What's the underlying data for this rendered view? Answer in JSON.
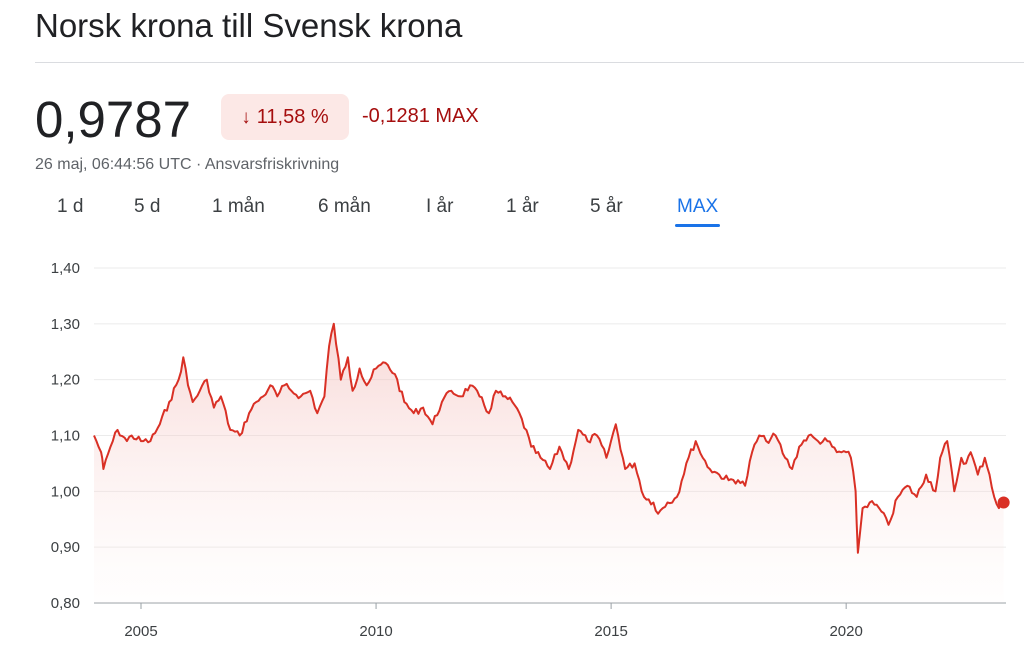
{
  "header": {
    "title": "Norsk krona till Svensk krona"
  },
  "quote": {
    "price": "0,9787",
    "change_percent": "11,58 %",
    "change_arrow": "↓",
    "change_abs": "-0,1281 MAX",
    "timestamp": "26 maj, 06:44:56 UTC",
    "separator": "·",
    "disclaimer": "Ansvarsfriskrivning"
  },
  "tabs": [
    {
      "label": "1 d",
      "active": false
    },
    {
      "label": "5 d",
      "active": false
    },
    {
      "label": "1 mån",
      "active": false
    },
    {
      "label": "6 mån",
      "active": false
    },
    {
      "label": "I år",
      "active": false
    },
    {
      "label": "1 år",
      "active": false
    },
    {
      "label": "5 år",
      "active": false
    },
    {
      "label": "MAX",
      "active": true
    }
  ],
  "colors": {
    "line": "#d93025",
    "negative_text": "#a50e0e",
    "badge_bg": "#fce8e6",
    "active_tab": "#1a73e8",
    "grid": "#ebebeb"
  },
  "chart_data": {
    "type": "area",
    "ylim": [
      0.8,
      1.4
    ],
    "yticks": [
      {
        "value": 1.4,
        "label": "1,40"
      },
      {
        "value": 1.3,
        "label": "1,30"
      },
      {
        "value": 1.2,
        "label": "1,20"
      },
      {
        "value": 1.1,
        "label": "1,10"
      },
      {
        "value": 1.0,
        "label": "1,00"
      },
      {
        "value": 0.9,
        "label": "0,90"
      },
      {
        "value": 0.8,
        "label": "0,80"
      }
    ],
    "xlim": [
      2004.0,
      2023.4
    ],
    "xticks": [
      {
        "value": 2005,
        "label": "2005"
      },
      {
        "value": 2010,
        "label": "2010"
      },
      {
        "value": 2015,
        "label": "2015"
      },
      {
        "value": 2020,
        "label": "2020"
      }
    ],
    "grid": true,
    "series": [
      {
        "x": [
          2004.0,
          2004.15,
          2004.2,
          2004.35,
          2004.5,
          2004.7,
          2004.8,
          2005.0,
          2005.2,
          2005.4,
          2005.6,
          2005.8,
          2005.9,
          2006.0,
          2006.1,
          2006.25,
          2006.4,
          2006.55,
          2006.7,
          2006.9,
          2007.1,
          2007.3,
          2007.45,
          2007.6,
          2007.75,
          2007.9,
          2008.05,
          2008.2,
          2008.4,
          2008.6,
          2008.75,
          2008.9,
          2009.0,
          2009.1,
          2009.25,
          2009.4,
          2009.5,
          2009.65,
          2009.8,
          2010.0,
          2010.2,
          2010.4,
          2010.6,
          2010.8,
          2011.0,
          2011.2,
          2011.4,
          2011.6,
          2011.8,
          2012.0,
          2012.2,
          2012.4,
          2012.55,
          2012.7,
          2012.9,
          2013.1,
          2013.3,
          2013.5,
          2013.7,
          2013.9,
          2014.1,
          2014.3,
          2014.5,
          2014.7,
          2014.9,
          2015.1,
          2015.3,
          2015.5,
          2015.7,
          2015.9,
          2016.0,
          2016.2,
          2016.4,
          2016.6,
          2016.8,
          2016.95,
          2017.1,
          2017.3,
          2017.5,
          2017.7,
          2017.85,
          2018.0,
          2018.15,
          2018.3,
          2018.5,
          2018.7,
          2018.85,
          2019.0,
          2019.2,
          2019.4,
          2019.6,
          2019.8,
          2020.0,
          2020.1,
          2020.2,
          2020.25,
          2020.35,
          2020.5,
          2020.7,
          2020.9,
          2021.1,
          2021.3,
          2021.5,
          2021.7,
          2021.9,
          2022.0,
          2022.15,
          2022.3,
          2022.45,
          2022.55,
          2022.65,
          2022.8,
          2022.95,
          2023.05,
          2023.15,
          2023.25,
          2023.35
        ],
        "y": [
          1.1,
          1.07,
          1.04,
          1.08,
          1.11,
          1.09,
          1.1,
          1.09,
          1.09,
          1.12,
          1.16,
          1.2,
          1.24,
          1.19,
          1.16,
          1.18,
          1.2,
          1.15,
          1.17,
          1.11,
          1.1,
          1.14,
          1.16,
          1.17,
          1.19,
          1.17,
          1.19,
          1.18,
          1.17,
          1.18,
          1.14,
          1.17,
          1.26,
          1.3,
          1.2,
          1.24,
          1.18,
          1.22,
          1.19,
          1.22,
          1.23,
          1.21,
          1.16,
          1.14,
          1.15,
          1.12,
          1.16,
          1.18,
          1.17,
          1.19,
          1.17,
          1.14,
          1.18,
          1.17,
          1.16,
          1.13,
          1.08,
          1.06,
          1.04,
          1.08,
          1.04,
          1.11,
          1.09,
          1.1,
          1.06,
          1.12,
          1.04,
          1.05,
          0.99,
          0.98,
          0.96,
          0.98,
          0.99,
          1.05,
          1.09,
          1.06,
          1.04,
          1.03,
          1.02,
          1.02,
          1.01,
          1.07,
          1.1,
          1.09,
          1.1,
          1.06,
          1.04,
          1.08,
          1.1,
          1.09,
          1.09,
          1.07,
          1.07,
          1.06,
          1.0,
          0.89,
          0.97,
          0.98,
          0.97,
          0.94,
          0.99,
          1.01,
          0.99,
          1.03,
          1.0,
          1.06,
          1.09,
          1.0,
          1.06,
          1.05,
          1.07,
          1.03,
          1.06,
          1.03,
          0.99,
          0.97,
          0.98
        ]
      }
    ]
  }
}
